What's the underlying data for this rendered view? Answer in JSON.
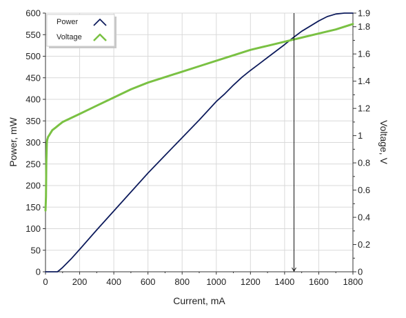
{
  "chart_data": {
    "type": "line",
    "title": "",
    "xlabel": "Current, mA",
    "ylabel_left": "Power, mW",
    "ylabel_right": "Voltage, V",
    "xlim": [
      0,
      1800
    ],
    "ylim_left": [
      0,
      600
    ],
    "ylim_right": [
      0,
      1.9
    ],
    "x_ticks": [
      0,
      200,
      400,
      600,
      800,
      1000,
      1200,
      1400,
      1600,
      1800
    ],
    "y_left_ticks": [
      0,
      50,
      100,
      150,
      200,
      250,
      300,
      350,
      400,
      450,
      500,
      550,
      600
    ],
    "y_right_ticks": [
      0,
      0.2,
      0.4,
      0.6,
      0.8,
      1,
      1.2,
      1.4,
      1.6,
      1.8,
      1.9
    ],
    "grid": true,
    "legend": {
      "placement": "top-left",
      "entries": [
        "Power",
        "Voltage"
      ]
    },
    "cursor_x": 1455,
    "colors": {
      "power": "#0d1b5c",
      "voltage": "#7ac143",
      "grid": "#d9d9d9",
      "axis": "#333333"
    },
    "series": [
      {
        "name": "Power",
        "axis": "left",
        "x": [
          0,
          20,
          40,
          60,
          70,
          80,
          100,
          150,
          200,
          300,
          400,
          500,
          600,
          700,
          800,
          900,
          1000,
          1050,
          1100,
          1150,
          1200,
          1250,
          1300,
          1350,
          1400,
          1450,
          1500,
          1550,
          1600,
          1650,
          1700,
          1750,
          1780,
          1800
        ],
        "values": [
          0,
          0,
          0,
          0,
          0,
          3,
          10,
          30,
          52,
          97,
          141,
          185,
          229,
          270,
          311,
          352,
          395,
          413,
          433,
          451,
          467,
          482,
          497,
          512,
          527,
          543,
          558,
          570,
          582,
          592,
          598,
          604,
          609,
          612
        ]
      },
      {
        "name": "Voltage",
        "axis": "right",
        "x": [
          0,
          3,
          5,
          8,
          10,
          15,
          20,
          30,
          40,
          60,
          80,
          100,
          150,
          200,
          300,
          400,
          500,
          600,
          700,
          800,
          900,
          1000,
          1100,
          1200,
          1300,
          1400,
          1500,
          1600,
          1700,
          1800
        ],
        "values": [
          0.45,
          0.55,
          0.8,
          0.95,
          0.97,
          0.99,
          1.0,
          1.02,
          1.04,
          1.06,
          1.08,
          1.1,
          1.13,
          1.16,
          1.22,
          1.28,
          1.34,
          1.39,
          1.43,
          1.47,
          1.51,
          1.55,
          1.59,
          1.63,
          1.66,
          1.69,
          1.72,
          1.75,
          1.78,
          1.82
        ]
      }
    ]
  }
}
